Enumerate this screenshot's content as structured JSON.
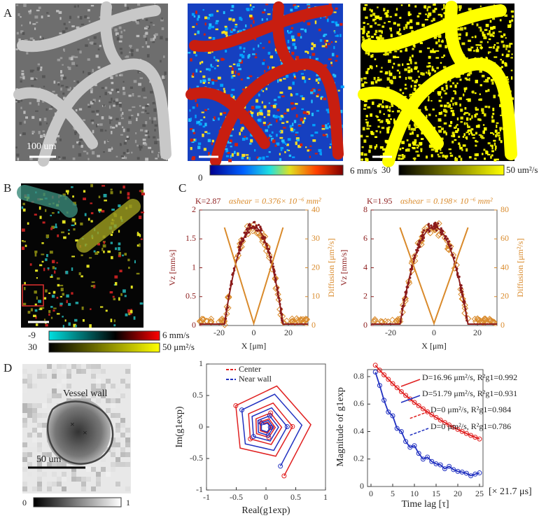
{
  "A": {
    "label": "A",
    "scale_bar": "100 um",
    "velocity_colorbar": {
      "min": "0",
      "max": "6 mm/s"
    },
    "diffusion_colorbar": {
      "min": "30",
      "max": "50 um²/s"
    }
  },
  "B": {
    "label": "B",
    "velocity_colorbar": {
      "min": "-9",
      "max": "6 mm/s"
    },
    "diffusion_colorbar": {
      "min": "30",
      "max": "50 μm²/s"
    }
  },
  "C": {
    "label": "C",
    "plots": [
      {
        "title": "K=2.87",
        "subtitle": "αshear = 0.376× 10⁻⁶ mm²",
        "y_label": "Vz [mm/s]",
        "y2_label": "Diffusion [μm²/s]",
        "x_label": "X [μm]",
        "xticks": [
          -20,
          0,
          20
        ],
        "yticks": [
          0,
          0.5,
          1,
          1.5,
          2
        ],
        "y2ticks": [
          0,
          10,
          20,
          30,
          40
        ]
      },
      {
        "title": "K=1.95",
        "subtitle": "αshear = 0.198× 10⁻⁶ mm²",
        "y_label": "Vz [mm/s]",
        "y2_label": "Diffusion [μm²/s]",
        "x_label": "X [μm]",
        "xticks": [
          -20,
          0,
          20
        ],
        "yticks": [
          0,
          2,
          4,
          6,
          8
        ],
        "y2ticks": [
          0,
          20,
          40,
          60,
          80
        ]
      }
    ]
  },
  "D": {
    "label": "D",
    "vessel_label": "Vessel wall",
    "scale_bar": "50 um",
    "colorbar": {
      "min": "0",
      "max": "1"
    },
    "phase_plot": {
      "legend": [
        "Center",
        "Near wall"
      ],
      "x_label": "Real(g1exp)",
      "y_label": "Im(g1exp)",
      "xticks": [
        -1,
        -0.5,
        0,
        0.5,
        1
      ],
      "yticks": [
        -1,
        -0.5,
        0,
        0.5,
        1
      ]
    },
    "decay_plot": {
      "x_label": "Time lag [τ]",
      "x_unit": "[× 21.7 μs]",
      "y_label": "Magnitude of g1exp",
      "xticks": [
        0,
        5,
        10,
        15,
        20,
        25
      ],
      "yticks": [
        0,
        0.2,
        0.4,
        0.6,
        0.8
      ],
      "annotations": [
        "D=16.96 μm²/s, R²g1=0.992",
        "D=51.79 μm²/s, R²g1=0.931",
        "D=0 μm²/s, R²g1=0.984",
        "D=0 μm²/s, R²g1=0.786"
      ]
    }
  }
}
